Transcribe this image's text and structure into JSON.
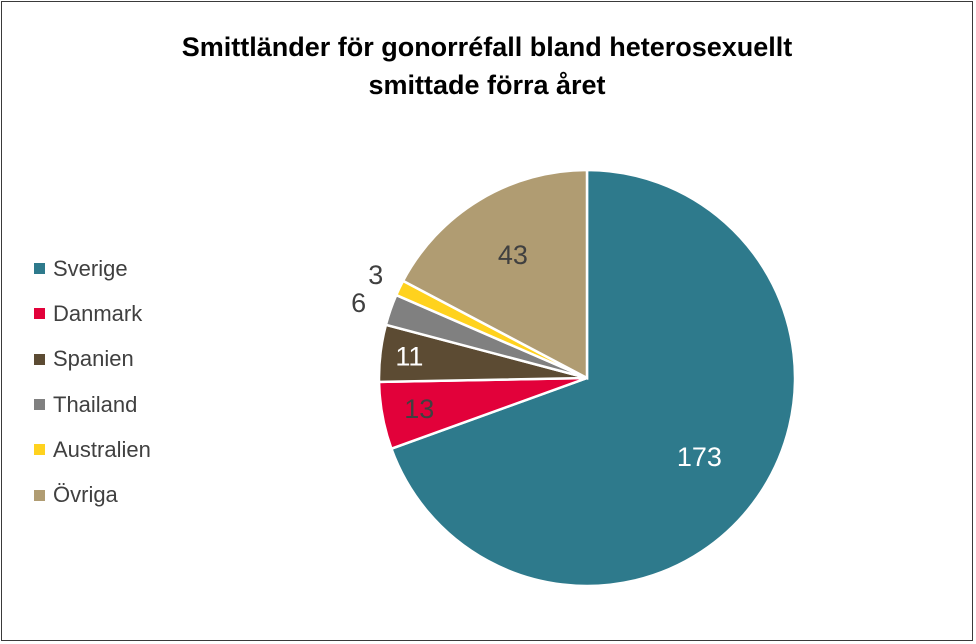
{
  "chart_data": {
    "type": "pie",
    "title_lines": [
      "Smittländer för gonorréfall bland heterosexuellt",
      "smittade förra året"
    ],
    "categories": [
      "Sverige",
      "Danmark",
      "Spanien",
      "Thailand",
      "Australien",
      "Övriga"
    ],
    "values": [
      173,
      13,
      11,
      6,
      3,
      43
    ],
    "colors": [
      "#2e7a8c",
      "#e2013a",
      "#5c4b33",
      "#808080",
      "#ffd21e",
      "#b09c72"
    ],
    "label_colors": [
      "#ffffff",
      "#404040",
      "#ffffff",
      "#404040",
      "#404040",
      "#404040"
    ],
    "start_angle": "12 o'clock",
    "direction": "clockwise",
    "legend_position": "left"
  }
}
